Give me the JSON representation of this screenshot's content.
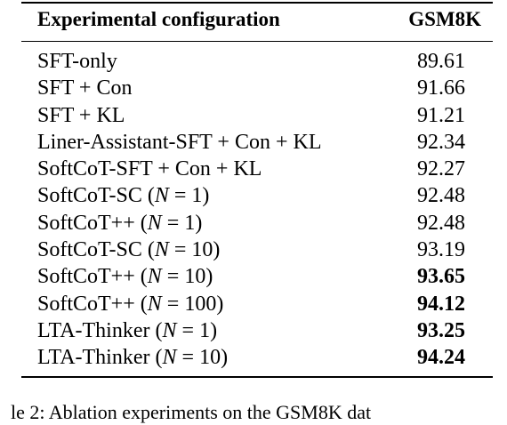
{
  "table": {
    "header": {
      "config_label": "Experimental configuration",
      "score_label": "GSM8K"
    },
    "rows": [
      {
        "config": "SFT-only",
        "n": "",
        "value": "89.61",
        "bold": false
      },
      {
        "config": "SFT + Con",
        "n": "",
        "value": "91.66",
        "bold": false
      },
      {
        "config": "SFT + KL",
        "n": "",
        "value": "91.21",
        "bold": false
      },
      {
        "config": "Liner-Assistant-SFT + Con + KL",
        "n": "",
        "value": "92.34",
        "bold": false
      },
      {
        "config": "SoftCoT-SFT + Con + KL",
        "n": "",
        "value": "92.27",
        "bold": false
      },
      {
        "config": "SoftCoT-SC",
        "n": "1",
        "value": "92.48",
        "bold": false
      },
      {
        "config": "SoftCoT++",
        "n": "1",
        "value": "92.48",
        "bold": false
      },
      {
        "config": "SoftCoT-SC",
        "n": "10",
        "value": "93.19",
        "bold": false
      },
      {
        "config": "SoftCoT++",
        "n": "10",
        "value": "93.65",
        "bold": true
      },
      {
        "config": "SoftCoT++",
        "n": "100",
        "value": "94.12",
        "bold": true
      },
      {
        "config": "LTA-Thinker",
        "n": "1",
        "value": "93.25",
        "bold": true
      },
      {
        "config": "LTA-Thinker",
        "n": "10",
        "value": "94.24",
        "bold": true
      }
    ]
  },
  "caption": "le 2:  Ablation experiments on the GSM8K dat"
}
